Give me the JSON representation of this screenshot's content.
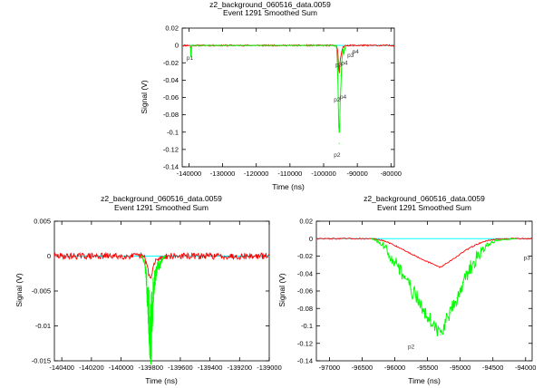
{
  "chart_data": [
    {
      "type": "line",
      "title": "z2_background_060516_data.0059",
      "subtitle": "Event 1291    Smoothed Sum",
      "xlabel": "Time (ns)",
      "ylabel": "Signal (V)",
      "xlim": [
        -142000,
        -79000
      ],
      "ylim": [
        -0.14,
        0.02
      ],
      "xticks": [
        -140000,
        -130000,
        -120000,
        -110000,
        -100000,
        -90000,
        -80000
      ],
      "yticks": [
        0.02,
        0,
        -0.02,
        -0.04,
        -0.06,
        -0.08,
        -0.1,
        -0.12,
        -0.14
      ],
      "baseline": 0,
      "colors": {
        "raw": "#ff0000",
        "smoothed": "#00ff00",
        "baseline": "#00ffff"
      },
      "annotations": [
        {
          "text": "p1",
          "x": -139700,
          "y": -0.0165
        },
        {
          "text": "p3",
          "x": -92000,
          "y": -0.0135
        },
        {
          "text": "p4",
          "x": -90500,
          "y": -0.0095
        },
        {
          "text": "p3",
          "x": -95500,
          "y": -0.0245
        },
        {
          "text": "p4",
          "x": -93800,
          "y": -0.0225
        },
        {
          "text": "p2",
          "x": -96000,
          "y": -0.0645
        },
        {
          "text": "p4",
          "x": -94200,
          "y": -0.0615
        },
        {
          "text": "p2",
          "x": -96000,
          "y": -0.1285
        }
      ],
      "series": [
        {
          "points": [
            [
              -139600,
              0
            ],
            [
              -139500,
              -0.008
            ],
            [
              -139400,
              -0.012
            ],
            [
              -139300,
              -0.003
            ],
            [
              -139200,
              0
            ],
            [
              -96300,
              0
            ],
            [
              -96000,
              -0.01
            ],
            [
              -95800,
              -0.025
            ],
            [
              -95650,
              -0.06
            ],
            [
              -95550,
              -0.085
            ],
            [
              -95450,
              -0.1
            ],
            [
              -95380,
              -0.113
            ],
            [
              -95300,
              -0.095
            ],
            [
              -95200,
              -0.075
            ],
            [
              -95100,
              -0.06
            ],
            [
              -95000,
              -0.05
            ],
            [
              -94800,
              -0.035
            ],
            [
              -94600,
              -0.02
            ],
            [
              -94400,
              -0.012
            ],
            [
              -94200,
              -0.005
            ],
            [
              -94000,
              -0.008
            ],
            [
              -93700,
              -0.003
            ],
            [
              -93400,
              0
            ]
          ]
        }
      ]
    },
    {
      "type": "line",
      "title": "z2_background_060516_data.0059",
      "subtitle": "Event 1291    Smoothed Sum",
      "xlabel": "Time (ns)",
      "ylabel": "Signal (V)",
      "xlim": [
        -140450,
        -139000
      ],
      "ylim": [
        -0.015,
        0.005
      ],
      "xticks": [
        -140400,
        -140200,
        -140000,
        -139800,
        -139600,
        -139400,
        -139200,
        -139000
      ],
      "xticklabels": [
        "-140400",
        "-140200",
        "-140000",
        "-139800",
        "-139600",
        "-139400",
        "-139200",
        "-139000"
      ],
      "yticks": [
        0.005,
        0,
        -0.005,
        -0.01,
        -0.015
      ],
      "baseline": 0,
      "colors": {
        "raw": "#ff0000",
        "smoothed": "#00ff00",
        "baseline": "#00ffff"
      },
      "annotations": [],
      "series": [
        {
          "points": [
            [
              -139860,
              0
            ],
            [
              -139840,
              -0.001
            ],
            [
              -139830,
              -0.003
            ],
            [
              -139820,
              -0.006
            ],
            [
              -139810,
              -0.009
            ],
            [
              -139800,
              -0.0115
            ],
            [
              -139792,
              -0.009
            ],
            [
              -139785,
              -0.006
            ],
            [
              -139778,
              -0.004
            ],
            [
              -139770,
              -0.003
            ],
            [
              -139760,
              -0.002
            ],
            [
              -139750,
              -0.0012
            ],
            [
              -139740,
              -0.0015
            ],
            [
              -139730,
              -0.0008
            ],
            [
              -139715,
              -0.0003
            ],
            [
              -139700,
              0
            ]
          ]
        }
      ]
    },
    {
      "type": "line",
      "title": "z2_background_060516_data.0059",
      "subtitle": "Event 1291    Smoothed Sum",
      "xlabel": "Time (ns)",
      "ylabel": "Signal (V)",
      "xlim": [
        -97200,
        -93900
      ],
      "ylim": [
        -0.14,
        0.02
      ],
      "xticks": [
        -97000,
        -96500,
        -96000,
        -95500,
        -95000,
        -94500,
        -94000
      ],
      "yticks": [
        0.02,
        0,
        -0.02,
        -0.04,
        -0.06,
        -0.08,
        -0.1,
        -0.12,
        -0.14
      ],
      "baseline": 0,
      "colors": {
        "raw": "#ff0000",
        "smoothed": "#00ff00",
        "baseline": "#00ffff"
      },
      "annotations": [
        {
          "text": "p2",
          "x": -95750,
          "y": -0.126
        },
        {
          "text": "p3",
          "x": -93980,
          "y": -0.024
        }
      ],
      "series": [
        {
          "points": [
            [
              -96350,
              0
            ],
            [
              -96250,
              -0.004
            ],
            [
              -96150,
              -0.01
            ],
            [
              -96050,
              -0.02
            ],
            [
              -95950,
              -0.032
            ],
            [
              -95850,
              -0.045
            ],
            [
              -95750,
              -0.058
            ],
            [
              -95650,
              -0.07
            ],
            [
              -95550,
              -0.082
            ],
            [
              -95450,
              -0.094
            ],
            [
              -95350,
              -0.104
            ],
            [
              -95300,
              -0.11
            ],
            [
              -95250,
              -0.1
            ],
            [
              -95150,
              -0.085
            ],
            [
              -95050,
              -0.068
            ],
            [
              -94950,
              -0.05
            ],
            [
              -94850,
              -0.035
            ],
            [
              -94750,
              -0.022
            ],
            [
              -94650,
              -0.012
            ],
            [
              -94550,
              -0.006
            ],
            [
              -94450,
              -0.002
            ],
            [
              -94300,
              -0.001
            ],
            [
              -94150,
              0
            ]
          ]
        }
      ]
    }
  ]
}
